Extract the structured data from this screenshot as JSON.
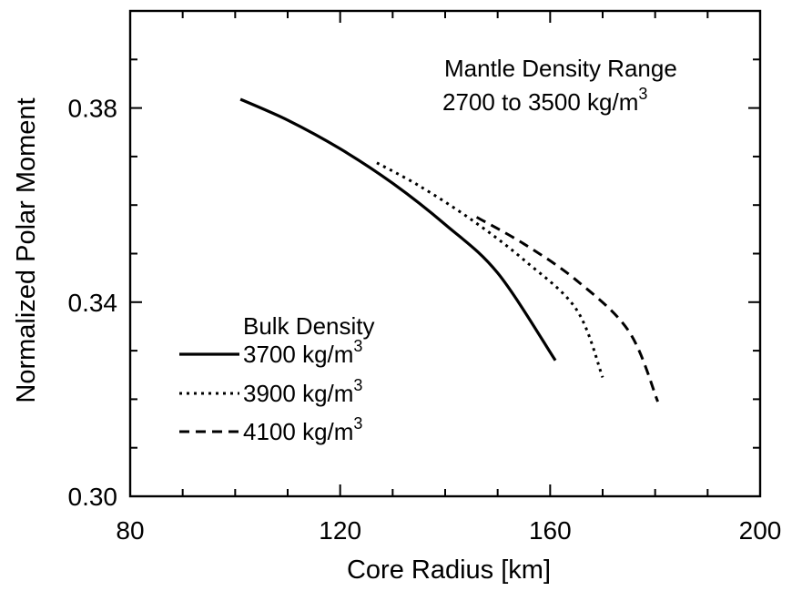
{
  "chart_data": {
    "type": "line",
    "xlabel": "Core Radius [km]",
    "ylabel": "Normalized Polar Moment",
    "xlim": [
      80,
      200
    ],
    "ylim": [
      0.3,
      0.4
    ],
    "x_ticks": [
      "80",
      "120",
      "160",
      "200"
    ],
    "y_ticks": [
      "0.30",
      "0.34",
      "0.38"
    ],
    "grid": false,
    "annotation": {
      "line1": "Mantle Density Range",
      "line2": "2700 to 3500 kg/m",
      "line2_sup": "3"
    },
    "legend": {
      "title": "Bulk Density",
      "placement": "bottom-left"
    },
    "series": [
      {
        "name": "3700 kg/m",
        "name_sup": "3",
        "style": "solid",
        "x": [
          101,
          110,
          120,
          130,
          140,
          150,
          161
        ],
        "y": [
          0.3818,
          0.3775,
          0.3716,
          0.3645,
          0.356,
          0.346,
          0.328
        ]
      },
      {
        "name": "3900 kg/m",
        "name_sup": "3",
        "style": "dotted",
        "x": [
          127,
          135,
          145,
          155,
          165,
          170
        ],
        "y": [
          0.3687,
          0.364,
          0.357,
          0.3487,
          0.3385,
          0.3245
        ]
      },
      {
        "name": "4100 kg/m",
        "name_sup": "3",
        "style": "dashed",
        "x": [
          146,
          155,
          165,
          175,
          180.5
        ],
        "y": [
          0.3575,
          0.352,
          0.3445,
          0.334,
          0.3195
        ]
      }
    ]
  }
}
